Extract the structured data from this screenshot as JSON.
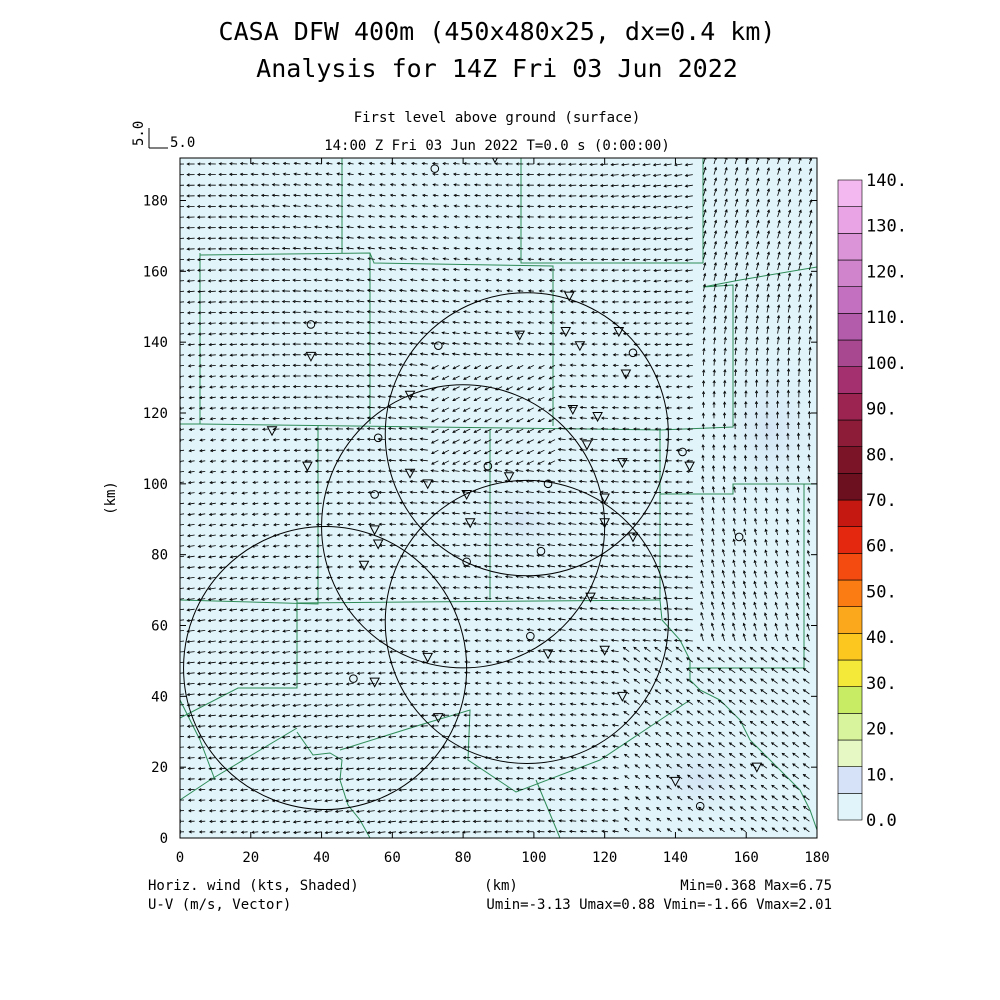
{
  "header": {
    "title_line1": "CASA DFW 400m (450x480x25, dx=0.4 km)",
    "title_line2": "Analysis for 14Z Fri 03 Jun 2022",
    "subtitle_line1": "First level above ground (surface)",
    "subtitle_line2": "14:00 Z Fri 03 Jun 2022    T=0.0 s (0:00:00)",
    "ref_vector_label_v": "5.0",
    "ref_vector_label_h": "5.0"
  },
  "footer": {
    "left_line1": "Horiz. wind (kts, Shaded)",
    "left_line2": "U-V (m/s, Vector)",
    "center": "(km)",
    "right_line1": "Min=0.368 Max=6.75",
    "right_line2": "Umin=-3.13 Umax=0.88 Vmin=-1.66 Vmax=2.01"
  },
  "chart_data": {
    "type": "heatmap",
    "xlabel": "(km)",
    "ylabel": "(km)",
    "xlim": [
      0,
      180
    ],
    "ylim": [
      0,
      192
    ],
    "x_ticks": [
      0,
      20,
      40,
      60,
      80,
      100,
      120,
      140,
      160,
      180
    ],
    "y_ticks": [
      0,
      20,
      40,
      60,
      80,
      100,
      120,
      140,
      160,
      180
    ],
    "shaded_field": "Horiz. wind (kts, Shaded)",
    "vector_field": "U-V (m/s, Vector)",
    "colorbar": {
      "levels": [
        "0.0",
        "10.",
        "20.",
        "30.",
        "40.",
        "50.",
        "60.",
        "70.",
        "80.",
        "90.",
        "100.",
        "110.",
        "120.",
        "130.",
        "140."
      ],
      "colors": [
        "#e0f4fa",
        "#d6e2f7",
        "#e6f8c4",
        "#d8f49c",
        "#c8ec64",
        "#f4e838",
        "#fcc820",
        "#fca81c",
        "#fc7c14",
        "#f44c10",
        "#e42810",
        "#c41810",
        "#6c1020",
        "#7c1428",
        "#8c1c38",
        "#9c2450",
        "#a43070",
        "#a84890",
        "#b45cac",
        "#c470c0",
        "#d084cc",
        "#dc94d8",
        "#e8a4e4",
        "#f4b8f0"
      ]
    },
    "radar_rings": [
      {
        "center": [
          80,
          88
        ],
        "radius_km": 40
      },
      {
        "center": [
          98,
          114
        ],
        "radius_km": 40
      },
      {
        "center": [
          41,
          48
        ],
        "radius_km": 40
      },
      {
        "center": [
          98,
          61
        ],
        "radius_km": 40
      }
    ],
    "stations_circle": [
      [
        72,
        189
      ],
      [
        37,
        145
      ],
      [
        73,
        139
      ],
      [
        128,
        137
      ],
      [
        56,
        113
      ],
      [
        142,
        109
      ],
      [
        87,
        105
      ],
      [
        104,
        100
      ],
      [
        55,
        97
      ],
      [
        102,
        81
      ],
      [
        81,
        78
      ],
      [
        158,
        85
      ],
      [
        99,
        57
      ],
      [
        49,
        45
      ],
      [
        147,
        9
      ]
    ],
    "stations_triangle": [
      [
        89,
        192
      ],
      [
        110,
        153
      ],
      [
        96,
        142
      ],
      [
        109,
        143
      ],
      [
        113,
        139
      ],
      [
        124,
        143
      ],
      [
        126,
        131
      ],
      [
        37,
        136
      ],
      [
        65,
        125
      ],
      [
        111,
        121
      ],
      [
        118,
        119
      ],
      [
        26,
        115
      ],
      [
        115,
        111
      ],
      [
        144,
        105
      ],
      [
        36,
        105
      ],
      [
        125,
        106
      ],
      [
        65,
        103
      ],
      [
        70,
        100
      ],
      [
        93,
        102
      ],
      [
        81,
        97
      ],
      [
        120,
        96
      ],
      [
        82,
        89
      ],
      [
        120,
        89
      ],
      [
        128,
        85
      ],
      [
        55,
        87
      ],
      [
        56,
        83
      ],
      [
        52,
        77
      ],
      [
        116,
        68
      ],
      [
        70,
        51
      ],
      [
        104,
        52
      ],
      [
        120,
        53
      ],
      [
        55,
        44
      ],
      [
        125,
        40
      ],
      [
        73,
        34
      ],
      [
        140,
        16
      ],
      [
        163,
        20
      ]
    ],
    "wind_vectors_summary": {
      "umin": -3.13,
      "umax": 0.88,
      "vmin": -1.66,
      "vmax": 2.01,
      "speed_min": 0.368,
      "speed_max": 6.75
    }
  }
}
